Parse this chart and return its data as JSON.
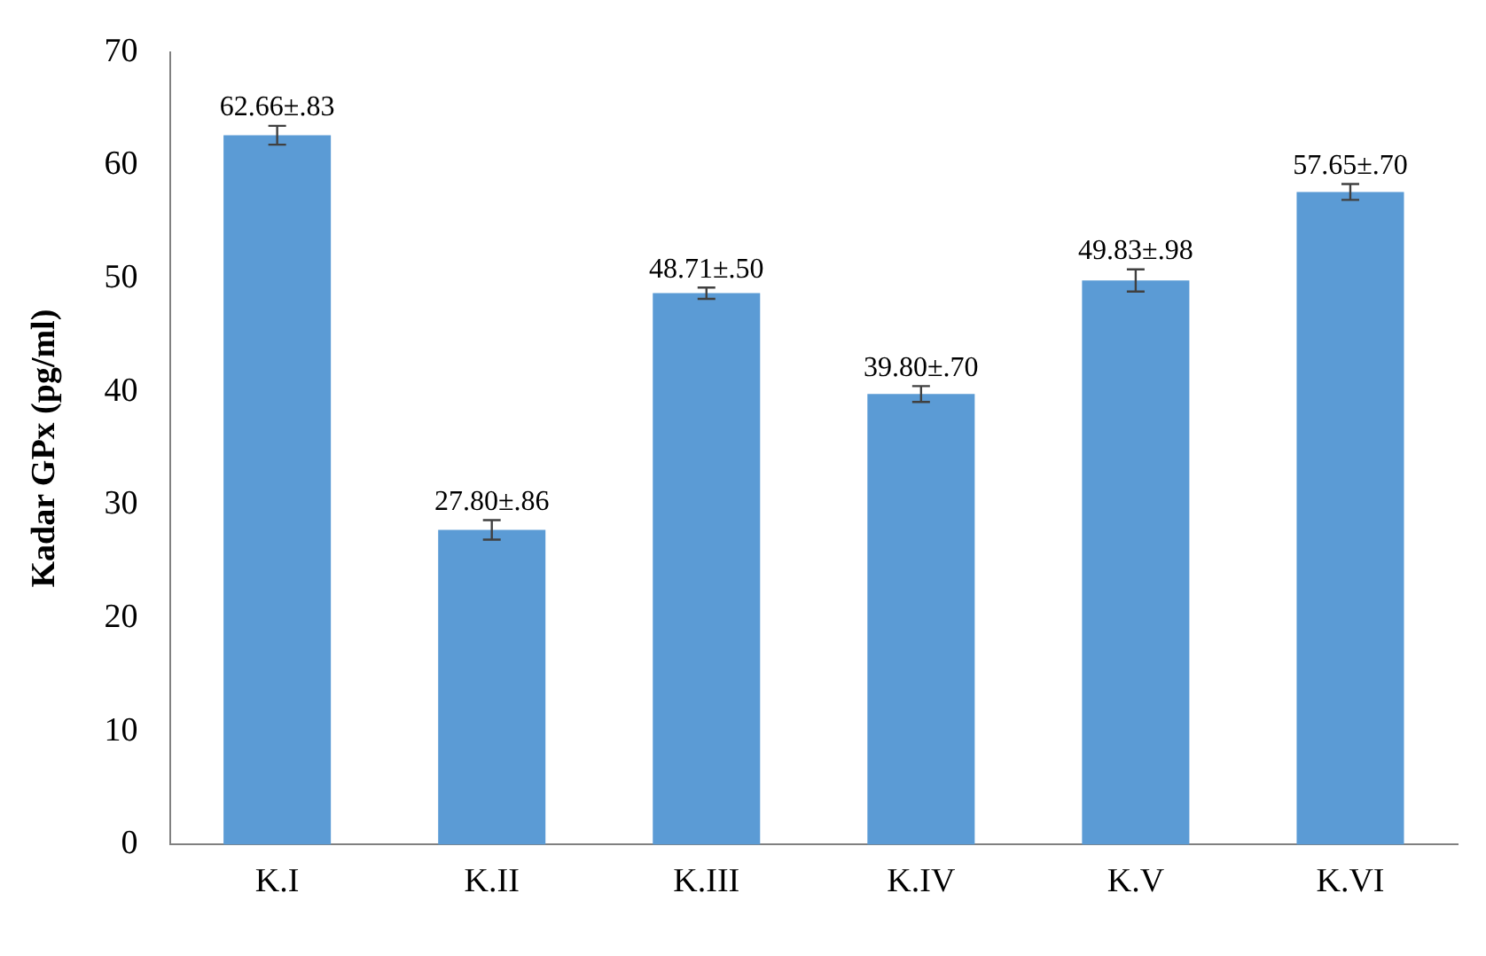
{
  "chart_data": {
    "type": "bar",
    "ylabel": "Kadar GPx (pg/ml)",
    "categories": [
      "K.I",
      "K.II",
      "K.III",
      "K.IV",
      "K.V",
      "K.VI"
    ],
    "values": [
      62.66,
      27.8,
      48.71,
      39.8,
      49.83,
      57.65
    ],
    "errors": [
      0.83,
      0.86,
      0.5,
      0.7,
      0.98,
      0.7
    ],
    "value_labels": [
      "62.66±.83",
      "27.80±.86",
      "48.71±.50",
      "39.80±.70",
      "49.83±.98",
      "57.65±.70"
    ],
    "color": "#5b9bd5",
    "ylim": [
      0,
      70
    ],
    "yticks": [
      0,
      10,
      20,
      30,
      40,
      50,
      60,
      70
    ],
    "grid": false,
    "legend": false
  }
}
